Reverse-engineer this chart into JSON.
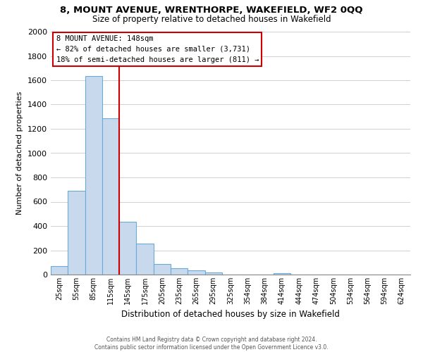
{
  "title": "8, MOUNT AVENUE, WRENTHORPE, WAKEFIELD, WF2 0QQ",
  "subtitle": "Size of property relative to detached houses in Wakefield",
  "xlabel": "Distribution of detached houses by size in Wakefield",
  "ylabel": "Number of detached properties",
  "bar_color": "#c8d9ee",
  "bar_edge_color": "#6aaad4",
  "categories": [
    "25sqm",
    "55sqm",
    "85sqm",
    "115sqm",
    "145sqm",
    "175sqm",
    "205sqm",
    "235sqm",
    "265sqm",
    "295sqm",
    "325sqm",
    "354sqm",
    "384sqm",
    "414sqm",
    "444sqm",
    "474sqm",
    "504sqm",
    "534sqm",
    "564sqm",
    "594sqm",
    "624sqm"
  ],
  "values": [
    68,
    690,
    1635,
    1285,
    435,
    253,
    88,
    52,
    32,
    20,
    0,
    0,
    0,
    12,
    0,
    0,
    0,
    0,
    0,
    0,
    0
  ],
  "ylim": [
    0,
    2000
  ],
  "yticks": [
    0,
    200,
    400,
    600,
    800,
    1000,
    1200,
    1400,
    1600,
    1800,
    2000
  ],
  "vline_index": 4,
  "vline_color": "#cc0000",
  "annotation_title": "8 MOUNT AVENUE: 148sqm",
  "annotation_line1": "← 82% of detached houses are smaller (3,731)",
  "annotation_line2": "18% of semi-detached houses are larger (811) →",
  "annotation_box_color": "#ffffff",
  "annotation_box_edge": "#cc0000",
  "footer1": "Contains HM Land Registry data © Crown copyright and database right 2024.",
  "footer2": "Contains public sector information licensed under the Open Government Licence v3.0.",
  "background_color": "#ffffff",
  "grid_color": "#d0d0d0"
}
